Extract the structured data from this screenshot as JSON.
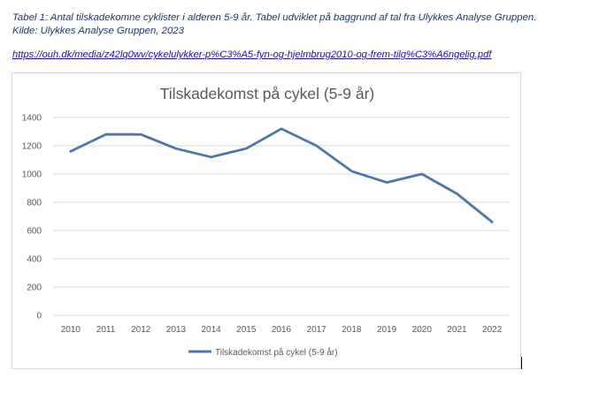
{
  "caption": {
    "line1": "Tabel 1: Antal tilskadekomne cyklister i alderen 5-9 år. Tabel udviklet på baggrund af tal fra Ulykkes Analyse Gruppen.",
    "line2": "Kilde: Ulykkes Analyse Gruppen, 2023"
  },
  "link": {
    "text": "https://ouh.dk/media/z42lq0wv/cykelulykker-p%C3%A5-fyn-og-hjelmbrug2010-og-frem-tilg%C3%A6ngelig.pdf"
  },
  "chart_data": {
    "type": "line",
    "title": "Tilskadekomst på cykel (5-9 år)",
    "xlabel": "",
    "ylabel": "",
    "categories": [
      "2010",
      "2011",
      "2012",
      "2013",
      "2014",
      "2015",
      "2016",
      "2017",
      "2018",
      "2019",
      "2020",
      "2021",
      "2022"
    ],
    "series": [
      {
        "name": "Tilskadekomst på cykel (5-9 år)",
        "values": [
          1160,
          1280,
          1280,
          1180,
          1120,
          1180,
          1320,
          1200,
          1020,
          940,
          1000,
          860,
          660
        ],
        "color": "#4f76a6"
      }
    ],
    "ylim": [
      0,
      1400
    ],
    "yticks": [
      0,
      200,
      400,
      600,
      800,
      1000,
      1200,
      1400
    ],
    "grid": true,
    "legend": "bottom"
  }
}
